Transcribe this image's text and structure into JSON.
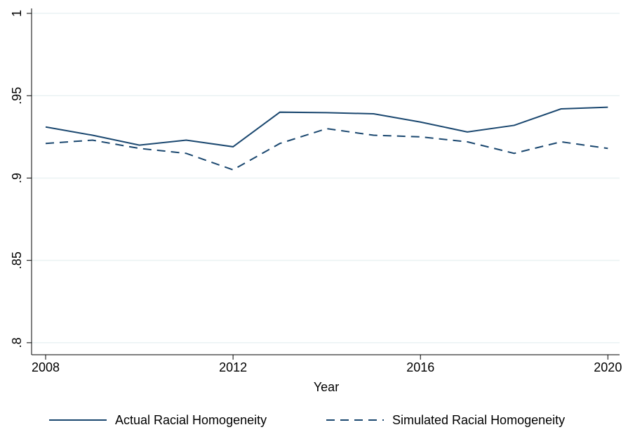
{
  "chart_data": {
    "type": "line",
    "x_label": "Year",
    "x": [
      2008,
      2009,
      2010,
      2011,
      2012,
      2013,
      2014,
      2015,
      2016,
      2017,
      2018,
      2019,
      2020
    ],
    "series": [
      {
        "name": "Actual Racial Homogeneity",
        "color": "#1a476f",
        "dash": false,
        "values": [
          0.931,
          0.926,
          0.92,
          0.923,
          0.919,
          0.94,
          0.9397,
          0.939,
          0.934,
          0.928,
          0.932,
          0.942,
          0.943
        ]
      },
      {
        "name": "Simulated Racial Homogeneity",
        "color": "#1a476f",
        "dash": true,
        "values": [
          0.921,
          0.923,
          0.918,
          0.915,
          0.905,
          0.921,
          0.93,
          0.926,
          0.925,
          0.922,
          0.915,
          0.922,
          0.918
        ]
      }
    ],
    "xlim": [
      2007.7,
      2020.25
    ],
    "xticks": [
      2008,
      2012,
      2016,
      2020
    ],
    "ylim": [
      0.7927,
      1.003
    ],
    "yticks": [
      {
        "value": 0.8,
        "label": ".8"
      },
      {
        "value": 0.85,
        "label": ".85"
      },
      {
        "value": 0.9,
        "label": ".9"
      },
      {
        "value": 0.95,
        "label": ".95"
      },
      1
    ],
    "grid": true,
    "legend": "bottom"
  }
}
